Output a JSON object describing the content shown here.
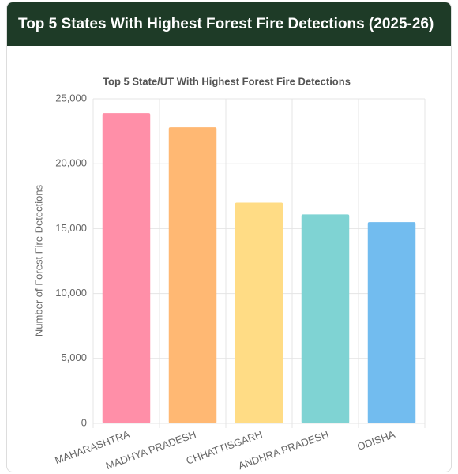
{
  "header": {
    "title": "Top 5 States With Highest Forest Fire Detections (2025-26)"
  },
  "chart_data": {
    "type": "bar",
    "title": "Top 5 State/UT With Highest Forest Fire Detections",
    "y_label": "Number of Forest Fire Detections",
    "categories": [
      "MAHARASHTRA",
      "MADHYA PRADESH",
      "CHHATTISGARH",
      "ANDHRA PRADESH",
      "ODISHA"
    ],
    "values": [
      23900,
      22800,
      17000,
      16100,
      15500
    ],
    "colors": [
      "#ff8fa8",
      "#ffb873",
      "#ffdc85",
      "#7fd3d3",
      "#72bcef"
    ],
    "ylim": [
      0,
      25000
    ],
    "yticks": [
      0,
      {
        "value": 5000,
        "label": "5,000"
      },
      {
        "value": 10000,
        "label": "10,000"
      },
      {
        "value": 15000,
        "label": "15,000"
      },
      {
        "value": 20000,
        "label": "20,000"
      },
      {
        "value": 25000,
        "label": "25,000"
      }
    ],
    "grid": true
  }
}
